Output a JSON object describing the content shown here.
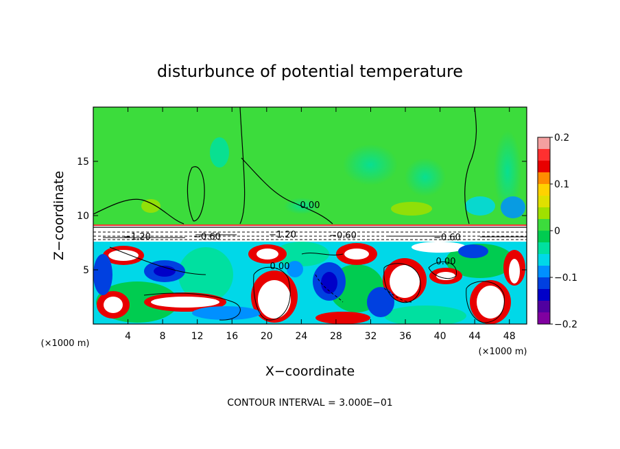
{
  "chart_data": {
    "type": "heatmap",
    "title": "disturbunce of potential temperature",
    "xlabel": "X−coordinate",
    "ylabel": "Z−coordinate",
    "x_unit": "(×1000 m)",
    "z_unit": "(×1000 m)",
    "xlim": [
      0,
      50
    ],
    "ylim": [
      0,
      20
    ],
    "x_ticks": [
      4,
      8,
      12,
      16,
      20,
      24,
      28,
      32,
      36,
      40,
      44,
      48
    ],
    "y_ticks": [
      5,
      10,
      15
    ],
    "colorbar": {
      "range": [
        -0.2,
        0.2
      ],
      "tick_values": [
        0.2,
        0.1,
        0,
        -0.1,
        -0.2
      ],
      "tick_labels": [
        "0.2",
        "0.1",
        "0",
        "−0.1",
        "−0.2"
      ],
      "colors": [
        "#F4A0A0",
        "#FF3030",
        "#E80000",
        "#FF8C00",
        "#FFD200",
        "#E0E000",
        "#A0E000",
        "#3CDC3C",
        "#00CC50",
        "#00E0A0",
        "#00D8E8",
        "#0090FF",
        "#0040E0",
        "#0000C8",
        "#5000A0",
        "#8000A0"
      ]
    },
    "contour_labels": [
      "0.00",
      "0.00",
      "0.00",
      "−1.20",
      "−1.20",
      "−0.60",
      "−0.60",
      "−0.60"
    ],
    "annotation": "CONTOUR INTERVAL = 3.000E−01",
    "upper_layer_value": 0.02,
    "inversion_layer_z": [
      8.0,
      9.2
    ]
  }
}
